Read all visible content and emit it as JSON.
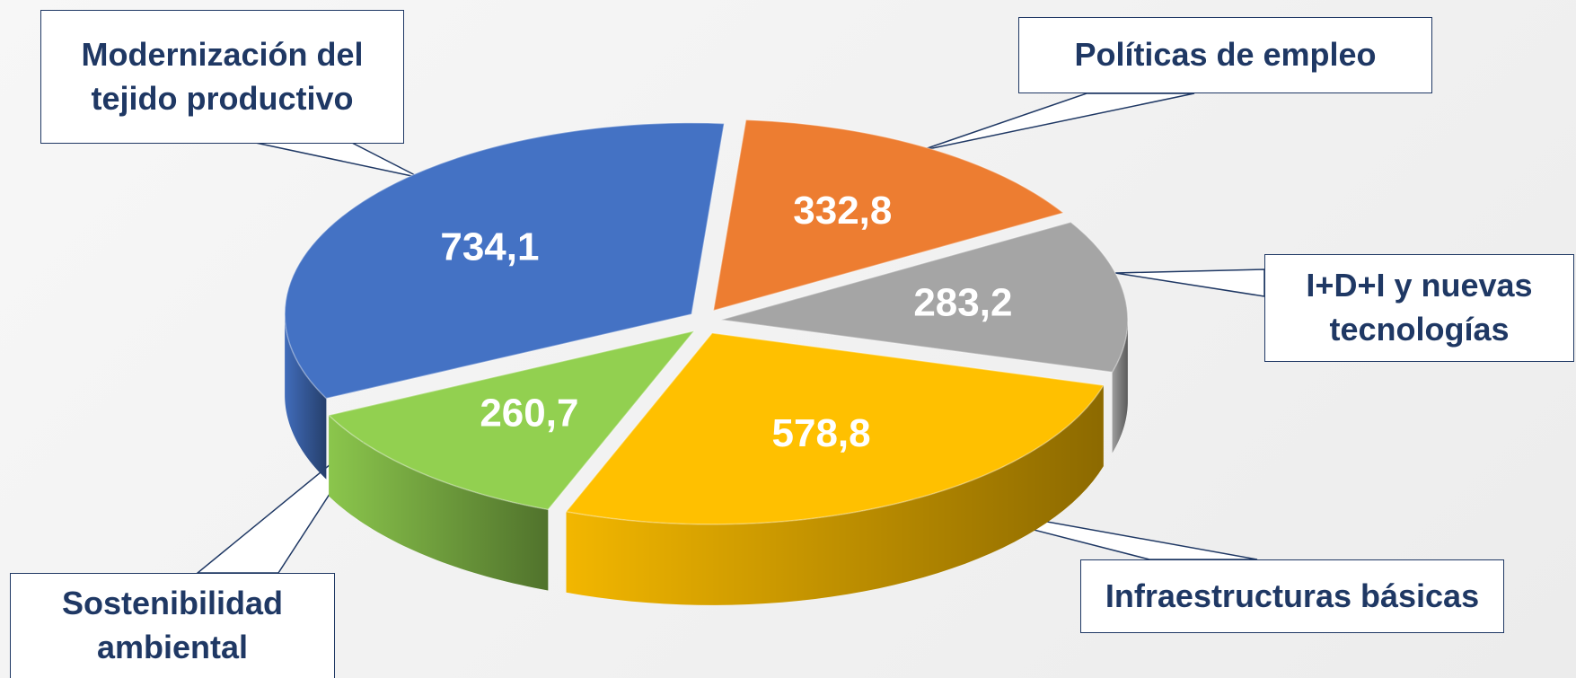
{
  "chart_data": {
    "type": "pie",
    "categories": [
      "Políticas de empleo",
      "I+D+I y nuevas tecnologías",
      "Infraestructuras básicas",
      "Sostenibilidad ambiental",
      "Modernización del tejido productivo"
    ],
    "values": [
      332.8,
      283.2,
      578.8,
      260.7,
      734.1
    ],
    "value_labels": [
      "332,8",
      "283,2",
      "578,8",
      "260,7",
      "734,1"
    ],
    "colors": [
      "#ed7d31",
      "#a5a5a5",
      "#ffc000",
      "#92d050",
      "#4472c4"
    ]
  }
}
